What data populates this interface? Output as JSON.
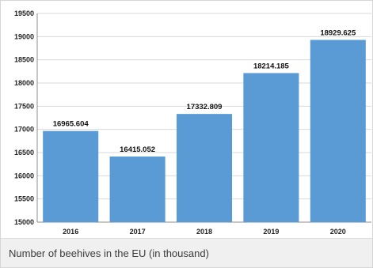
{
  "caption": "Number of beehives in the EU (in thousand)",
  "colors": {
    "bar": "#5b9bd5",
    "grid": "#d9d9d9",
    "axis": "#8c8c8c"
  },
  "chart_data": {
    "type": "bar",
    "title": "",
    "xlabel": "",
    "ylabel": "",
    "categories": [
      "2016",
      "2017",
      "2018",
      "2019",
      "2020"
    ],
    "values": [
      16965.604,
      16415.052,
      17332.809,
      18214.185,
      18929.625
    ],
    "value_labels": [
      "16965.604",
      "16415.052",
      "17332.809",
      "18214.185",
      "18929.625"
    ],
    "ylim": [
      15000,
      19500
    ],
    "yticks": [
      15000,
      15500,
      16000,
      16500,
      17000,
      17500,
      18000,
      18500,
      19000,
      19500
    ],
    "grid": true,
    "legend": "none"
  }
}
